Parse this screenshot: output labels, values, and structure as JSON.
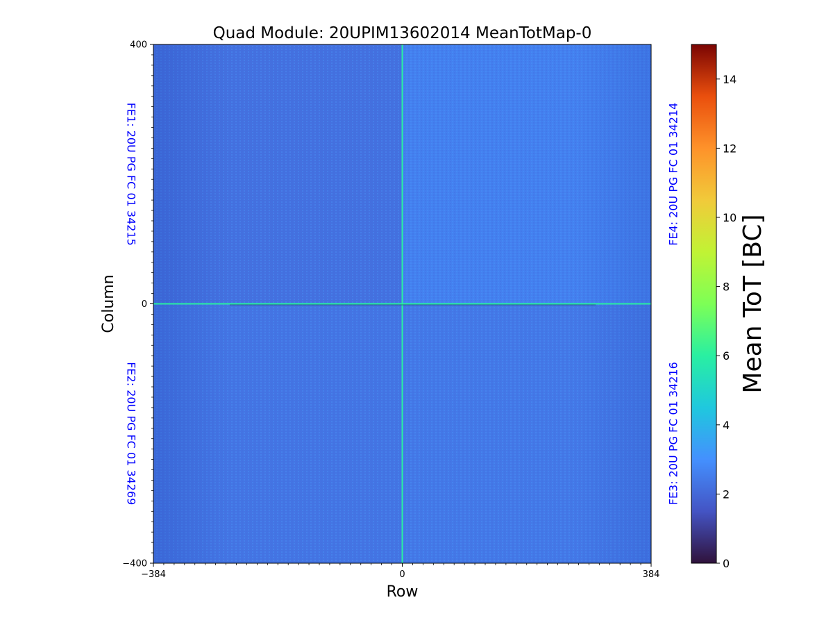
{
  "chart_data": {
    "type": "heatmap",
    "title": "Quad Module: 20UPIM13602014 MeanTotMap-0",
    "xlabel": "Row",
    "ylabel": "Column",
    "xlim": [
      -384,
      384
    ],
    "ylim": [
      -400,
      400
    ],
    "x_ticks": [
      {
        "value": -384,
        "label": "−384"
      },
      {
        "value": 0,
        "label": "0"
      },
      {
        "value": 384,
        "label": "384"
      }
    ],
    "y_ticks": [
      {
        "value": 400,
        "label": "400"
      },
      {
        "value": 0,
        "label": "0"
      },
      {
        "value": -400,
        "label": "−400"
      }
    ],
    "quadrants": [
      {
        "label": "FE1: 20U PG FC 01 34215",
        "position": "top-left",
        "mean_tot": 2.2
      },
      {
        "label": "FE4: 20U PG FC 01 34214",
        "position": "top-right",
        "mean_tot": 2.6
      },
      {
        "label": "FE2: 20U PG FC 01 34269",
        "position": "bottom-left",
        "mean_tot": 2.3
      },
      {
        "label": "FE3: 20U PG FC 01 34216",
        "position": "bottom-right",
        "mean_tot": 2.4
      }
    ],
    "hot_lines": [
      {
        "axis": "vertical",
        "at": 0,
        "value": 6
      },
      {
        "axis": "horizontal",
        "at": 0,
        "value": 6
      }
    ],
    "colorbar": {
      "label": "Mean ToT [BC]",
      "min": 0,
      "max": 15,
      "colormap": "turbo",
      "ticks": [
        0,
        2,
        4,
        6,
        8,
        10,
        12,
        14
      ]
    },
    "label_color": "#0000ff"
  }
}
